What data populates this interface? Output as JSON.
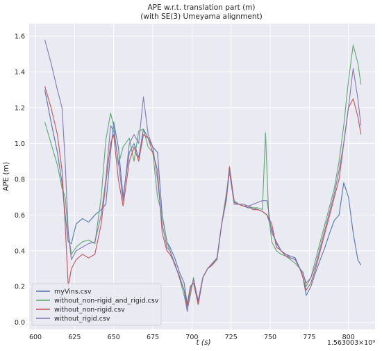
{
  "chart_data": {
    "type": "line",
    "title": "APE w.r.t. translation part (m)",
    "subtitle": "(with SE(3) Umeyama alignment)",
    "xlabel": "t (s)",
    "ylabel": "APE (m)",
    "x_offset_label": "1.563003×10⁹",
    "xlim": [
      596,
      817
    ],
    "ylim": [
      -0.04,
      1.67
    ],
    "xticks": [
      600,
      625,
      650,
      675,
      700,
      725,
      750,
      775,
      800
    ],
    "yticks": [
      0.0,
      0.2,
      0.4,
      0.6,
      0.8,
      1.0,
      1.2,
      1.4,
      1.6
    ],
    "xtick_labels": [
      "600",
      "625",
      "650",
      "675",
      "700",
      "725",
      "750",
      "775",
      "800"
    ],
    "ytick_labels": [
      "0.0",
      "0.2",
      "0.4",
      "0.6",
      "0.8",
      "1.0",
      "1.2",
      "1.4",
      "1.6"
    ],
    "grid": true,
    "background": "#eaeaf2",
    "legend_position": "lower-left",
    "series": [
      {
        "name": "myVins.csv",
        "color": "#4c72b0",
        "x": [
          606,
          610,
          614,
          617,
          619,
          621,
          623,
          626,
          630,
          634,
          638,
          642,
          645,
          648,
          650,
          653,
          656,
          660,
          663,
          666,
          669,
          672,
          675,
          678,
          681,
          684,
          686,
          689,
          692,
          695,
          697,
          699,
          701,
          704,
          707,
          710,
          713,
          716,
          719,
          722,
          724,
          727,
          730,
          733,
          736,
          739,
          742,
          745,
          748,
          751,
          754,
          757,
          760,
          763,
          766,
          769,
          771,
          773,
          776,
          779,
          782,
          785,
          788,
          791,
          794,
          797,
          800,
          803,
          806,
          808
        ],
        "values": [
          1.3,
          1.12,
          0.95,
          0.78,
          0.6,
          0.45,
          0.44,
          0.55,
          0.58,
          0.56,
          0.6,
          0.63,
          0.66,
          0.95,
          1.12,
          0.98,
          0.7,
          0.95,
          1.0,
          0.92,
          1.08,
          1.03,
          0.98,
          0.95,
          0.6,
          0.45,
          0.42,
          0.36,
          0.28,
          0.22,
          0.1,
          0.2,
          0.22,
          0.12,
          0.25,
          0.3,
          0.33,
          0.35,
          0.55,
          0.7,
          0.86,
          0.67,
          0.66,
          0.65,
          0.64,
          0.64,
          0.63,
          0.62,
          0.6,
          0.52,
          0.44,
          0.4,
          0.38,
          0.37,
          0.36,
          0.3,
          0.25,
          0.15,
          0.2,
          0.28,
          0.35,
          0.42,
          0.5,
          0.57,
          0.6,
          0.78,
          0.7,
          0.5,
          0.35,
          0.32
        ]
      },
      {
        "name": "without_non-rigid_and_rigid.csv",
        "color": "#55a868",
        "x": [
          606,
          610,
          614,
          617,
          619,
          621,
          623,
          626,
          630,
          634,
          638,
          642,
          645,
          648,
          650,
          653,
          656,
          660,
          663,
          666,
          669,
          672,
          675,
          678,
          681,
          684,
          686,
          689,
          692,
          695,
          697,
          699,
          701,
          704,
          707,
          710,
          713,
          716,
          719,
          722,
          724,
          727,
          730,
          733,
          736,
          739,
          742,
          745,
          747,
          749,
          751,
          754,
          757,
          760,
          763,
          766,
          769,
          771,
          773,
          776,
          779,
          782,
          785,
          788,
          791,
          794,
          797,
          800,
          803,
          806,
          808
        ],
        "values": [
          1.12,
          1.0,
          0.88,
          0.75,
          0.7,
          0.5,
          0.38,
          0.42,
          0.45,
          0.46,
          0.44,
          0.7,
          1.02,
          1.17,
          1.1,
          0.88,
          0.98,
          1.03,
          0.9,
          1.07,
          1.08,
          0.98,
          0.95,
          0.7,
          0.6,
          0.45,
          0.4,
          0.33,
          0.25,
          0.15,
          0.07,
          0.15,
          0.25,
          0.1,
          0.25,
          0.3,
          0.32,
          0.35,
          0.55,
          0.68,
          0.85,
          0.68,
          0.66,
          0.65,
          0.65,
          0.64,
          0.64,
          0.63,
          1.06,
          0.6,
          0.45,
          0.4,
          0.38,
          0.37,
          0.35,
          0.33,
          0.3,
          0.28,
          0.2,
          0.25,
          0.35,
          0.45,
          0.55,
          0.65,
          0.75,
          0.9,
          1.1,
          1.35,
          1.55,
          1.45,
          1.33
        ]
      },
      {
        "name": "without_non-rigid.csv",
        "color": "#c44e52",
        "x": [
          606,
          610,
          614,
          617,
          619,
          621,
          623,
          626,
          630,
          634,
          638,
          642,
          645,
          648,
          650,
          653,
          656,
          660,
          663,
          666,
          669,
          672,
          675,
          678,
          681,
          684,
          686,
          689,
          692,
          695,
          697,
          699,
          701,
          704,
          707,
          710,
          713,
          716,
          719,
          722,
          724,
          727,
          730,
          733,
          736,
          739,
          742,
          745,
          748,
          751,
          754,
          757,
          760,
          763,
          766,
          769,
          771,
          773,
          776,
          779,
          782,
          785,
          788,
          791,
          794,
          797,
          800,
          803,
          806,
          808
        ],
        "values": [
          1.32,
          1.2,
          1.05,
          0.85,
          0.55,
          0.2,
          0.3,
          0.35,
          0.38,
          0.36,
          0.38,
          0.55,
          0.78,
          1.0,
          1.05,
          0.8,
          0.65,
          0.9,
          0.98,
          0.9,
          1.05,
          1.03,
          0.95,
          0.85,
          0.5,
          0.4,
          0.38,
          0.33,
          0.25,
          0.18,
          0.09,
          0.2,
          0.22,
          0.1,
          0.25,
          0.3,
          0.32,
          0.36,
          0.55,
          0.7,
          0.87,
          0.67,
          0.66,
          0.65,
          0.65,
          0.63,
          0.63,
          0.62,
          0.6,
          0.55,
          0.42,
          0.4,
          0.37,
          0.36,
          0.35,
          0.3,
          0.25,
          0.18,
          0.22,
          0.3,
          0.4,
          0.5,
          0.6,
          0.7,
          0.8,
          1.0,
          1.2,
          1.25,
          1.15,
          1.05
        ]
      },
      {
        "name": "without_rigid.csv",
        "color": "#8172b2",
        "x": [
          606,
          610,
          614,
          617,
          619,
          621,
          623,
          626,
          630,
          634,
          638,
          642,
          645,
          648,
          650,
          653,
          656,
          660,
          663,
          666,
          669,
          672,
          675,
          678,
          681,
          684,
          686,
          689,
          692,
          695,
          697,
          699,
          701,
          704,
          707,
          710,
          713,
          716,
          719,
          722,
          724,
          727,
          730,
          733,
          736,
          739,
          742,
          745,
          748,
          751,
          754,
          757,
          760,
          763,
          766,
          769,
          771,
          773,
          776,
          779,
          782,
          785,
          788,
          791,
          794,
          797,
          800,
          803,
          806,
          808
        ],
        "values": [
          1.58,
          1.45,
          1.3,
          1.2,
          0.9,
          0.5,
          0.35,
          0.4,
          0.42,
          0.44,
          0.45,
          0.6,
          0.8,
          1.1,
          1.07,
          0.9,
          0.68,
          1.0,
          1.05,
          1.0,
          1.26,
          1.05,
          0.98,
          0.8,
          0.55,
          0.42,
          0.4,
          0.32,
          0.26,
          0.18,
          0.06,
          0.18,
          0.24,
          0.12,
          0.25,
          0.3,
          0.33,
          0.36,
          0.55,
          0.72,
          0.84,
          0.66,
          0.66,
          0.66,
          0.65,
          0.66,
          0.67,
          0.68,
          0.68,
          0.5,
          0.45,
          0.4,
          0.38,
          0.36,
          0.35,
          0.3,
          0.27,
          0.22,
          0.25,
          0.32,
          0.42,
          0.52,
          0.62,
          0.72,
          0.85,
          1.0,
          1.2,
          1.42,
          1.25,
          1.1
        ]
      }
    ]
  }
}
